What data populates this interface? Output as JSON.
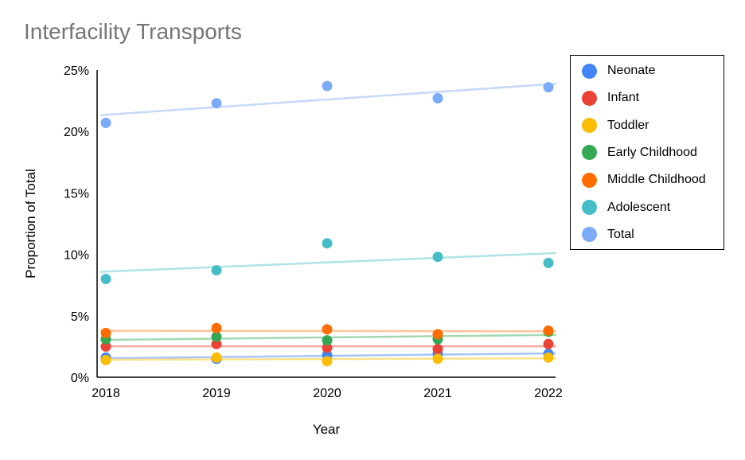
{
  "chart_data": {
    "type": "scatter",
    "title": "Interfacility Transports",
    "xlabel": "Year",
    "ylabel": "Proportion of Total",
    "x": [
      2018,
      2019,
      2020,
      2021,
      2022
    ],
    "x_tick_labels": [
      "2018",
      "2019",
      "2020",
      "2021",
      "2022"
    ],
    "ylim": [
      0,
      25
    ],
    "y_ticks": [
      0,
      5,
      10,
      15,
      20,
      25
    ],
    "y_tick_labels": [
      "0%",
      "5%",
      "10%",
      "15%",
      "20%",
      "25%"
    ],
    "trendlines": true,
    "grid": false,
    "legend_position": "right",
    "series": [
      {
        "name": "Neonate",
        "color": "#4285f4",
        "trend_color": "#a8c4f8",
        "values": [
          1.6,
          1.5,
          1.8,
          1.9,
          1.9
        ]
      },
      {
        "name": "Infant",
        "color": "#ea4335",
        "trend_color": "#f5aaa4",
        "values": [
          2.5,
          2.7,
          2.4,
          2.3,
          2.7
        ]
      },
      {
        "name": "Toddler",
        "color": "#fbbc04",
        "trend_color": "#fde28a",
        "values": [
          1.4,
          1.6,
          1.3,
          1.5,
          1.6
        ]
      },
      {
        "name": "Early Childhood",
        "color": "#34a853",
        "trend_color": "#a3d9b0",
        "values": [
          3.1,
          3.3,
          3.0,
          3.1,
          3.7
        ]
      },
      {
        "name": "Middle Childhood",
        "color": "#ff6d01",
        "trend_color": "#ffc49c",
        "values": [
          3.6,
          4.0,
          3.9,
          3.5,
          3.8
        ]
      },
      {
        "name": "Adolescent",
        "color": "#46bdc6",
        "trend_color": "#b0e3e7",
        "values": [
          8.0,
          8.7,
          10.9,
          9.8,
          9.3
        ]
      },
      {
        "name": "Total",
        "color": "#7baaf7",
        "trend_color": "#c6d9fb",
        "values": [
          20.7,
          22.3,
          23.7,
          22.7,
          23.6
        ]
      }
    ]
  }
}
